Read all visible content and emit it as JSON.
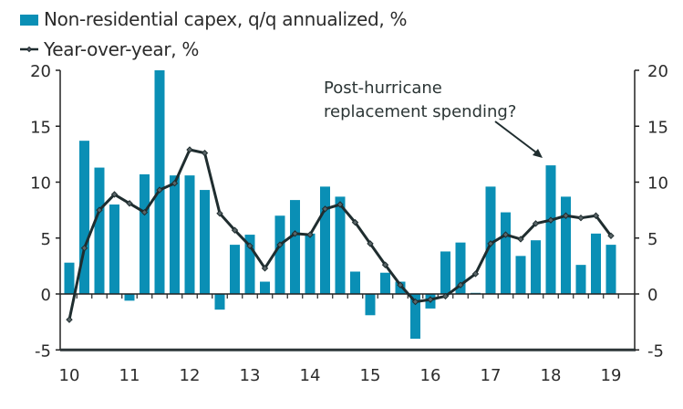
{
  "chart_data": {
    "type": "bar",
    "title": "",
    "xlabel": "",
    "ylabel": "",
    "ylim": [
      -5,
      20
    ],
    "yticks": [
      -5,
      0,
      5,
      10,
      15,
      20
    ],
    "ytick_labels": [
      "-5",
      "0",
      "5",
      "10",
      "15",
      "20"
    ],
    "secondary_yticks": [
      -5,
      0,
      5,
      10,
      15,
      20
    ],
    "secondary_ytick_labels": [
      "-5",
      "0",
      "5",
      "10",
      "15",
      "20"
    ],
    "xtick_labels": [
      "10",
      "11",
      "12",
      "13",
      "14",
      "15",
      "16",
      "17",
      "18",
      "19"
    ],
    "x": [
      "2010Q1",
      "2010Q2",
      "2010Q3",
      "2010Q4",
      "2011Q1",
      "2011Q2",
      "2011Q3",
      "2011Q4",
      "2012Q1",
      "2012Q2",
      "2012Q3",
      "2012Q4",
      "2013Q1",
      "2013Q2",
      "2013Q3",
      "2013Q4",
      "2014Q1",
      "2014Q2",
      "2014Q3",
      "2014Q4",
      "2015Q1",
      "2015Q2",
      "2015Q3",
      "2015Q4",
      "2016Q1",
      "2016Q2",
      "2016Q3",
      "2016Q4",
      "2017Q1",
      "2017Q2",
      "2017Q3",
      "2017Q4",
      "2018Q1",
      "2018Q2",
      "2018Q3",
      "2018Q4",
      "2019Q1"
    ],
    "series": [
      {
        "name": "Non-residential capex, q/q annualized, %",
        "type": "bar",
        "color": "#0a8fb5",
        "values": [
          2.8,
          13.7,
          11.3,
          8.0,
          -0.6,
          10.7,
          20.0,
          10.6,
          10.6,
          9.3,
          -1.4,
          4.4,
          5.3,
          1.1,
          7.0,
          8.4,
          5.4,
          9.6,
          8.7,
          2.0,
          -1.9,
          1.9,
          1.1,
          -4.0,
          -1.3,
          3.8,
          4.6,
          0.1,
          9.6,
          7.3,
          3.4,
          4.8,
          11.5,
          8.7,
          2.6,
          5.4,
          4.4
        ]
      },
      {
        "name": "Year-over-year, %",
        "type": "line",
        "color": "#1f2d2f",
        "values": [
          -2.3,
          4.1,
          7.5,
          8.9,
          8.1,
          7.3,
          9.3,
          9.9,
          12.9,
          12.6,
          7.2,
          5.7,
          4.3,
          2.3,
          4.4,
          5.4,
          5.3,
          7.6,
          8.0,
          6.4,
          4.5,
          2.6,
          0.8,
          -0.7,
          -0.5,
          -0.2,
          0.8,
          1.8,
          4.5,
          5.3,
          4.9,
          6.3,
          6.6,
          7.0,
          6.8,
          7.0,
          5.2
        ]
      }
    ],
    "legend": {
      "placement": "top-left",
      "entries": [
        "Non-residential capex, q/q annualized, %",
        "Year-over-year, %"
      ]
    },
    "annotations": [
      {
        "text_lines": [
          "Post-hurricane",
          "replacement spending?"
        ],
        "points_to": "2018Q1"
      }
    ],
    "grid": false
  }
}
